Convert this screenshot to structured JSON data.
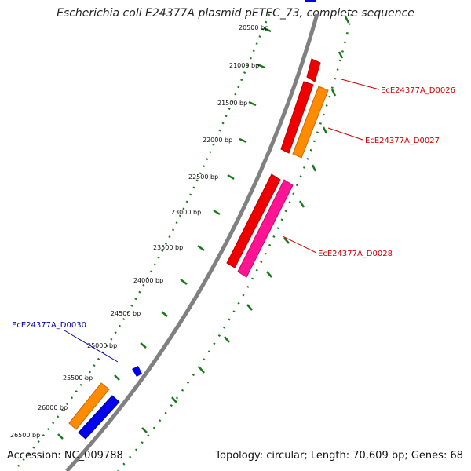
{
  "header": {
    "title": "Escherichia coli E24377A plasmid pETEC_73, complete sequence"
  },
  "footer": {
    "accession": "Accession: NC_009788",
    "summary": "Topology: circular; Length: 70,609 bp; Genes: 68"
  },
  "map": {
    "bp_labels": [
      "20500 bp",
      "21000 bp",
      "21500 bp",
      "22000 bp",
      "22500 bp",
      "23000 bp",
      "23500 bp",
      "24000 bp",
      "24500 bp",
      "25000 bp",
      "25500 bp",
      "26000 bp",
      "26500 bp"
    ],
    "gene_labels": [
      {
        "text": "EcE24377A_D0026",
        "color": "#cc0000"
      },
      {
        "text": "EcE24377A_D0027",
        "color": "#cc0000"
      },
      {
        "text": "EcE24377A_D0028",
        "color": "#cc0000"
      },
      {
        "text": "EcE24377A_D0030",
        "color": "#0000aa"
      }
    ],
    "colors": {
      "backbone": "#808080",
      "ticks": "#1a7a1a",
      "red_gene": "#ee0000",
      "orange_gene": "#ff8c00",
      "magenta_gene": "#ff1493",
      "blue_gene": "#0000ee"
    }
  }
}
